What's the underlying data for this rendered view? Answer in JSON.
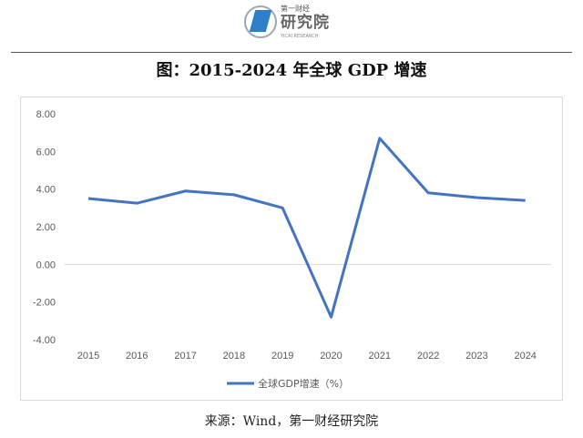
{
  "logo": {
    "line1": "第一财经",
    "line2": "研究院",
    "line3": "YICAI RESEARCH"
  },
  "title": "图：2015-2024 年全球 GDP 增速",
  "source": "来源：Wind，第一财经研究院",
  "colors": {
    "line": "#4472c4",
    "grid": "#d9d9d9",
    "axis_text": "#595959"
  },
  "chart_data": {
    "type": "line",
    "title": "图：2015-2024 年全球 GDP 增速",
    "xlabel": "",
    "ylabel": "",
    "x": [
      "2015",
      "2016",
      "2017",
      "2018",
      "2019",
      "2020",
      "2021",
      "2022",
      "2023",
      "2024"
    ],
    "series": [
      {
        "name": "全球GDP增速（%）",
        "values": [
          3.5,
          3.25,
          3.9,
          3.7,
          3.0,
          -2.8,
          6.7,
          3.8,
          3.55,
          3.4
        ]
      }
    ],
    "ylim": [
      -4,
      8
    ],
    "yticks": [
      "8.00",
      "6.00",
      "4.00",
      "2.00",
      "0.00",
      "-2.00",
      "-4.00"
    ],
    "grid": false,
    "legend": "bottom"
  }
}
